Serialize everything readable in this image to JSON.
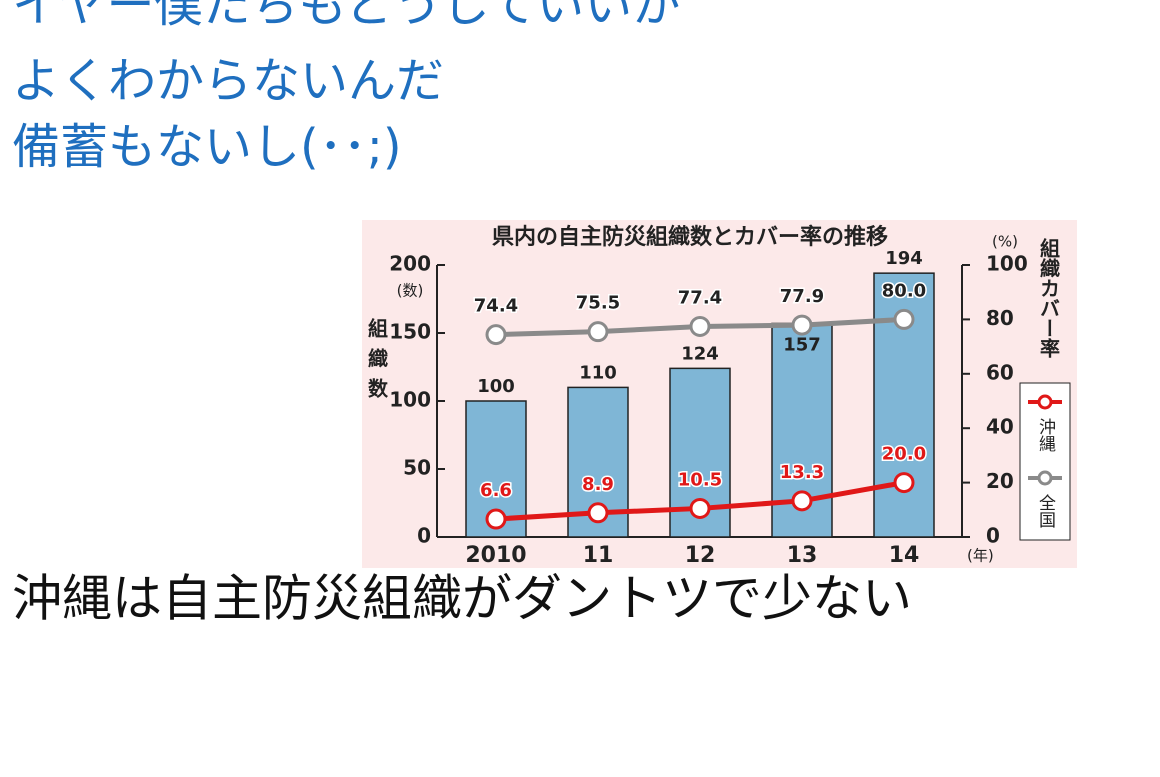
{
  "slide": {
    "lines": [
      "イヤー僕たちもどうしていいか",
      "よくわからないんだ",
      "備蓄もないし(･･;)"
    ],
    "caption": "沖縄は自主防災組織がダントツで少ない"
  },
  "chart_data": {
    "type": "bar-line",
    "title": "県内の自主防災組織数とカバー率の推移",
    "y_label": "組織数",
    "y_unit": "(数)",
    "y2_label": "組織カバー率",
    "y2_unit": "(%)",
    "x_unit": "(年)",
    "categories": [
      "2010",
      "11",
      "12",
      "13",
      "14"
    ],
    "series": [
      {
        "type": "bar",
        "values": [
          100,
          110,
          124,
          157,
          194
        ],
        "color": "#7fb6d6"
      },
      {
        "type": "line",
        "name": "沖縄",
        "axis": "y2",
        "color": "#e01818",
        "values": [
          6.6,
          8.9,
          10.5,
          13.3,
          20.0
        ],
        "value_labels": [
          "6.6",
          "8.9",
          "10.5",
          "13.3",
          "20.0"
        ]
      },
      {
        "type": "line",
        "name": "全国",
        "axis": "y2",
        "color": "#8a8a8a",
        "values": [
          74.4,
          75.5,
          77.4,
          77.9,
          80.0
        ],
        "value_labels": [
          "74.4",
          "75.5",
          "77.4",
          "77.9",
          "80.0"
        ]
      }
    ],
    "ylim": [
      0,
      200
    ],
    "yticks": [
      0,
      50,
      100,
      150,
      200
    ],
    "y2lim": [
      0,
      100
    ],
    "y2ticks": [
      0,
      20,
      40,
      60,
      80,
      100
    ]
  }
}
